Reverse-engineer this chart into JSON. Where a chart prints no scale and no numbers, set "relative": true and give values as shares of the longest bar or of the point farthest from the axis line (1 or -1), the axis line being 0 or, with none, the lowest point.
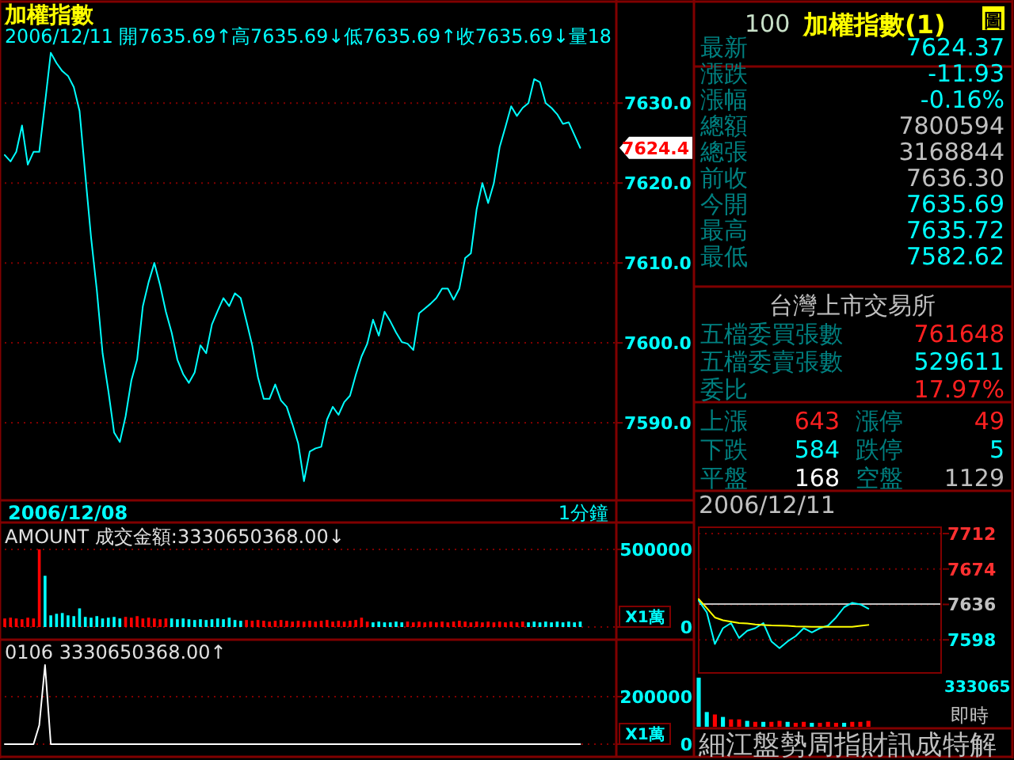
{
  "chart_data": [
    {
      "type": "line",
      "title": "加權指數",
      "subtitle": "2006/12/11 開7635.69↑高7635.69↓低7635.69↑收7635.69↓量18",
      "color": "#00ffff",
      "grid": "y",
      "categories": [
        null,
        null,
        null,
        null,
        null,
        null,
        null,
        null,
        null,
        null,
        null,
        null,
        null,
        null,
        null,
        null,
        null,
        null,
        null,
        null,
        null,
        null,
        null,
        null,
        null,
        null,
        null,
        null,
        null,
        null,
        null,
        null,
        null,
        null,
        null,
        null,
        null,
        null,
        null,
        null,
        null,
        null,
        null,
        null,
        null,
        null,
        null,
        null,
        null,
        null,
        null,
        null,
        null,
        null,
        null,
        null,
        null,
        null,
        null,
        null,
        null,
        null,
        null,
        null,
        null,
        null,
        null,
        null,
        null,
        null,
        null,
        null,
        null,
        null,
        null,
        null,
        null,
        null,
        null,
        null,
        null,
        null,
        null,
        null,
        null,
        null,
        null,
        null,
        null,
        null,
        null,
        null,
        null,
        null,
        null,
        null,
        null,
        null,
        null,
        null,
        null,
        null,
        null,
        null,
        null,
        null,
        null
      ],
      "values": [
        7623.5,
        7622.7,
        7623.9,
        7627.2,
        7622.3,
        7623.9,
        7623.9,
        7630,
        7636.3,
        7635,
        7634,
        7633.4,
        7632,
        7629,
        7621,
        7613.2,
        7606.6,
        7598.7,
        7594,
        7588.8,
        7587.6,
        7590.8,
        7595.3,
        7597.9,
        7604.6,
        7607.6,
        7610,
        7607.2,
        7603.9,
        7601.3,
        7597.9,
        7596.1,
        7595,
        7596.3,
        7599.7,
        7598.7,
        7602.3,
        7604,
        7605.6,
        7604.6,
        7606.2,
        7605.6,
        7602.7,
        7599.7,
        7595.7,
        7593,
        7593,
        7594.8,
        7592.8,
        7592,
        7589.8,
        7587.4,
        7582.7,
        7586.4,
        7586.8,
        7587,
        7590.4,
        7592,
        7591,
        7592.6,
        7593.4,
        7596,
        7598.3,
        7599.9,
        7602.9,
        7600.9,
        7603.9,
        7602.7,
        7601.3,
        7600.1,
        7599.9,
        7599.1,
        7603.7,
        7604.3,
        7604.9,
        7605.6,
        7606.8,
        7606.8,
        7605.4,
        7606.8,
        7610.6,
        7611.2,
        7616.7,
        7620,
        7617.5,
        7620,
        7624.5,
        7627,
        7629.6,
        7628.4,
        7629.4,
        7630,
        7633,
        7632.6,
        7630,
        7629.4,
        7628.6,
        7627.4,
        7627.6,
        7626,
        7624.4,
        null,
        null,
        null,
        null,
        null,
        null
      ],
      "ylim": [
        7580.3,
        7642.7
      ],
      "yticks": [
        {
          "value": 7590,
          "label": "7590.0"
        },
        {
          "value": 7600,
          "label": "7600.0"
        },
        {
          "value": 7610,
          "label": "7610.0"
        },
        {
          "value": 7620,
          "label": "7620.0"
        },
        {
          "value": 7630,
          "label": "7630.0"
        }
      ],
      "annotations": [
        "2006/12/08",
        "1分鐘",
        "7624.4"
      ]
    },
    {
      "type": "bar",
      "title": "AMOUNT 成交金額:3330650368.00↓",
      "categories": [
        null,
        null,
        null,
        null,
        null,
        null,
        null,
        null,
        null,
        null,
        null,
        null,
        null,
        null,
        null,
        null,
        null,
        null,
        null,
        null,
        null,
        null,
        null,
        null,
        null,
        null,
        null,
        null,
        null,
        null,
        null,
        null,
        null,
        null,
        null,
        null,
        null,
        null,
        null,
        null,
        null,
        null,
        null,
        null,
        null,
        null,
        null,
        null,
        null,
        null,
        null,
        null,
        null,
        null,
        null,
        null,
        null,
        null,
        null,
        null,
        null,
        null,
        null,
        null,
        null,
        null,
        null,
        null,
        null,
        null,
        null,
        null,
        null,
        null,
        null,
        null,
        null,
        null,
        null,
        null,
        null,
        null,
        null,
        null,
        null,
        null,
        null,
        null,
        null,
        null,
        null,
        null,
        null,
        null,
        null,
        null,
        null,
        null,
        null,
        null,
        null,
        null,
        null,
        null,
        null,
        null,
        null
      ],
      "values": [
        55000,
        60000,
        55000,
        50000,
        60000,
        55000,
        500000,
        330000,
        75000,
        85000,
        90000,
        75000,
        70000,
        120000,
        65000,
        60000,
        70000,
        55000,
        60000,
        65000,
        55000,
        65000,
        60000,
        70000,
        55000,
        60000,
        55000,
        50000,
        55000,
        55000,
        50000,
        55000,
        50000,
        45000,
        50000,
        45000,
        50000,
        55000,
        50000,
        60000,
        45000,
        40000,
        45000,
        40000,
        45000,
        40000,
        35000,
        40000,
        45000,
        40000,
        35000,
        40000,
        35000,
        40000,
        35000,
        40000,
        45000,
        35000,
        40000,
        35000,
        40000,
        45000,
        60000,
        35000,
        30000,
        35000,
        30000,
        30000,
        35000,
        30000,
        35000,
        30000,
        35000,
        30000,
        35000,
        30000,
        35000,
        30000,
        35000,
        40000,
        35000,
        30000,
        35000,
        30000,
        35000,
        30000,
        35000,
        30000,
        35000,
        30000,
        35000,
        30000,
        35000,
        30000,
        35000,
        30000,
        35000,
        30000,
        35000,
        30000,
        35000,
        null,
        null,
        null,
        null,
        null,
        null
      ],
      "colors": [
        "#ff0000",
        "#ff0000",
        "#ff0000",
        "#ff0000",
        "#ff0000",
        "#ff0000",
        "#ff0000",
        "#00ffff",
        "#00ffff",
        "#00ffff",
        "#00ffff",
        "#00ffff",
        "#00ffff",
        "#00ffff",
        "#00ffff",
        "#00ffff",
        "#00ffff",
        "#00ffff",
        "#00ffff",
        "#00ffff",
        "#00ffff",
        "#ff0000",
        "#ff0000",
        "#ff0000",
        "#ff0000",
        "#ff0000",
        "#ff0000",
        "#ff0000",
        "#ff0000",
        "#00ffff",
        "#00ffff",
        "#00ffff",
        "#00ffff",
        "#00ffff",
        "#00ffff",
        "#00ffff",
        "#00ffff",
        "#00ffff",
        "#00ffff",
        "#00ffff",
        "#00ffff",
        "#00ffff",
        "#ff0000",
        "#ff0000",
        "#ff0000",
        "#ff0000",
        "#ff0000",
        "#ff0000",
        "#ff0000",
        "#ff0000",
        "#ff0000",
        "#ff0000",
        "#ff0000",
        "#ff0000",
        "#ff0000",
        "#ff0000",
        "#ff0000",
        "#ff0000",
        "#ff0000",
        "#ff0000",
        "#ff0000",
        "#ff0000",
        "#ff0000",
        "#ff0000",
        "#00ffff",
        "#00ffff",
        "#00ffff",
        "#00ffff",
        "#00ffff",
        "#00ffff",
        "#ff0000",
        "#ff0000",
        "#ff0000",
        "#ff0000",
        "#ff0000",
        "#ff0000",
        "#ff0000",
        "#ff0000",
        "#ff0000",
        "#ff0000",
        "#ff0000",
        "#ff0000",
        "#ff0000",
        "#ff0000",
        "#ff0000",
        "#ff0000",
        "#ff0000",
        "#ff0000",
        "#ff0000",
        "#ff0000",
        "#ff0000",
        "#00ffff",
        "#00ffff",
        "#00ffff",
        "#00ffff",
        "#00ffff",
        "#00ffff",
        "#00ffff",
        "#00ffff",
        "#00ffff",
        "#00ffff",
        null,
        null,
        null,
        null,
        null,
        null
      ],
      "ylim": [
        0,
        663000
      ],
      "yticks": [
        0,
        500000
      ],
      "annotations": [
        "X1萬"
      ],
      "ref_lines": [
        {
          "axis": "y",
          "value": 0,
          "color": "#800000",
          "line_style": "dotted"
        },
        {
          "axis": "y",
          "value": 500000,
          "color": "#800000",
          "line_style": "dotted"
        }
      ]
    },
    {
      "type": "line",
      "title": "0106 3330650368.00↑",
      "color": "#ffffff",
      "ref_lines": [
        {
          "axis": "y",
          "value": 0,
          "color": "#800000",
          "line_style": "dotted"
        },
        {
          "axis": "y",
          "value": 200000,
          "color": "#800000",
          "line_style": "dotted"
        }
      ],
      "categories": [
        null,
        null,
        null,
        null,
        null,
        null,
        null,
        null,
        null,
        null,
        null,
        null,
        null,
        null,
        null,
        null,
        null,
        null,
        null,
        null,
        null,
        null,
        null,
        null,
        null,
        null,
        null,
        null,
        null,
        null,
        null,
        null,
        null,
        null,
        null,
        null,
        null,
        null,
        null,
        null,
        null,
        null,
        null,
        null,
        null,
        null,
        null,
        null,
        null,
        null,
        null,
        null,
        null,
        null,
        null,
        null,
        null,
        null,
        null,
        null,
        null,
        null,
        null,
        null,
        null,
        null,
        null,
        null,
        null,
        null,
        null,
        null,
        null,
        null,
        null,
        null,
        null,
        null,
        null,
        null,
        null,
        null,
        null,
        null,
        null,
        null,
        null,
        null,
        null,
        null,
        null,
        null,
        null,
        null,
        null,
        null,
        null,
        null,
        null,
        null,
        null,
        null,
        null,
        null,
        null,
        null,
        null
      ],
      "values": [
        0,
        0,
        0,
        0,
        0,
        0,
        80000,
        333000,
        0,
        0,
        0,
        0,
        0,
        0,
        0,
        0,
        0,
        0,
        0,
        0,
        0,
        0,
        0,
        0,
        0,
        0,
        0,
        0,
        0,
        0,
        0,
        0,
        0,
        0,
        0,
        0,
        0,
        0,
        0,
        0,
        0,
        0,
        0,
        0,
        0,
        0,
        0,
        0,
        0,
        0,
        0,
        0,
        0,
        0,
        0,
        0,
        0,
        0,
        0,
        0,
        0,
        0,
        0,
        0,
        0,
        0,
        0,
        0,
        0,
        0,
        0,
        0,
        0,
        0,
        0,
        0,
        0,
        0,
        0,
        0,
        0,
        0,
        0,
        0,
        0,
        0,
        0,
        0,
        0,
        0,
        0,
        0,
        0,
        0,
        0,
        0,
        0,
        0,
        0,
        0,
        0,
        null,
        null,
        null,
        null,
        null,
        null
      ],
      "ylim": [
        0,
        433000
      ],
      "yticks": [
        0,
        200000
      ],
      "annotations": [
        "X1萬"
      ]
    },
    {
      "type": "line",
      "title": "2006/12/11",
      "grid": "y",
      "categories": [
        null,
        null,
        null,
        null,
        null,
        null,
        null,
        null,
        null,
        null,
        null,
        null,
        null,
        null,
        null,
        null,
        null,
        null,
        null,
        null,
        null,
        null,
        null,
        null,
        null,
        null,
        null,
        null,
        null,
        null,
        null
      ],
      "series": [
        {
          "color": "#00ffff",
          "values": [
            7640,
            7627.5,
            7593.5,
            7610.5,
            7616,
            7600,
            7607.7,
            7610.5,
            7616,
            7596.3,
            7589,
            7596.3,
            7602,
            7610.5,
            7606,
            7610.5,
            7613.3,
            7622,
            7633,
            7637.7,
            7636,
            7631.5,
            null,
            null,
            null,
            null,
            null,
            null,
            null,
            null,
            null
          ]
        },
        {
          "color": "#ffff00",
          "values": [
            7641.7,
            7632,
            7622,
            7619,
            7617.5,
            7616,
            7615.5,
            7614.5,
            7614,
            7613.5,
            7613.3,
            7613,
            7612.5,
            7612.3,
            7612,
            7612,
            7612,
            7612,
            7612,
            7612,
            7613,
            7614,
            null,
            null,
            null,
            null,
            null,
            null,
            null,
            null,
            null
          ]
        }
      ],
      "ylim": [
        7562.5,
        7718.8
      ],
      "yticks": [
        7598,
        7636,
        7674,
        7712
      ],
      "ref_lines": [
        {
          "axis": "y",
          "value": 7636.3,
          "color": "#c0c0c0"
        }
      ]
    },
    {
      "type": "bar",
      "relative": true,
      "categories": [
        null,
        null,
        null,
        null,
        null,
        null,
        null,
        null,
        null,
        null,
        null,
        null,
        null,
        null,
        null,
        null,
        null,
        null,
        null,
        null,
        null,
        null,
        null,
        null,
        null,
        null,
        null,
        null,
        null,
        null,
        null
      ],
      "values": [
        1,
        0.3,
        0.25,
        0.2,
        0.15,
        0.15,
        0.12,
        0.1,
        0.1,
        0.1,
        0.12,
        0.1,
        0.08,
        0.1,
        0.08,
        0.08,
        0.1,
        0.08,
        0.08,
        0.1,
        0.1,
        0.12,
        null,
        null,
        null,
        null,
        null,
        null,
        null,
        null,
        null
      ],
      "colors": [
        "#00ffff",
        "#00ffff",
        "#ff0000",
        "#00ffff",
        "#ff0000",
        "#ff0000",
        "#00ffff",
        "#ff0000",
        "#00ffff",
        "#ff0000",
        "#ff0000",
        "#00ffff",
        "#ff0000",
        "#ff0000",
        "#00ffff",
        "#ff0000",
        "#ff0000",
        "#ff0000",
        "#00ffff",
        "#ff0000",
        "#ff0000",
        "#ff0000",
        null,
        null,
        null,
        null,
        null,
        null,
        null,
        null,
        null
      ],
      "annotations": [
        "333065",
        "即時"
      ]
    },
    {
      "type": "other",
      "title": "加權指數(1)",
      "annotations": [
        "100",
        "圖",
        "最新",
        "7624.37",
        "漲跌",
        "-11.93",
        "漲幅",
        "-0.16%",
        "總額",
        "7800594",
        "總張",
        "3168844",
        "前收",
        "7636.30",
        "今開",
        "7635.69",
        "最高",
        "7635.72",
        "最低",
        "7582.62",
        "台灣上市交易所",
        "五檔委買張數",
        "761648",
        "五檔委賣張數",
        "529611",
        "委比",
        "17.97%",
        "上漲",
        "643",
        "漲停",
        "49",
        "下跌",
        "584",
        "跌停",
        "5",
        "平盤",
        "168",
        "空盤",
        "1129",
        "細江盤勢周指財訊成特解"
      ]
    }
  ]
}
